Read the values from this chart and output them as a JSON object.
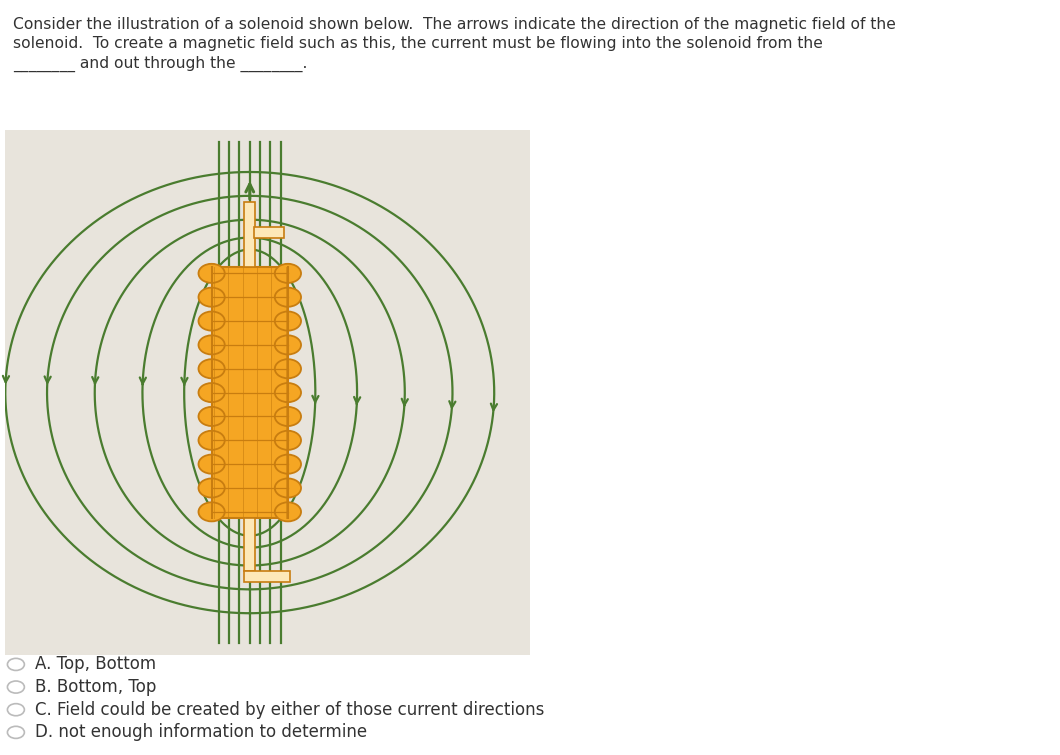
{
  "bg_color": "#ffffff",
  "header_line1": "Consider the illustration of a solenoid shown below.  The arrows indicate the direction of the magnetic field of the",
  "header_line2": "solenoid.  To create a magnetic field such as this, the current must be flowing into the solenoid from the",
  "header_line3": "________ and out through the ________.",
  "header_color": "#333333",
  "field_line_color": "#4a7c2f",
  "solenoid_fill_color": "#f5a623",
  "solenoid_edge_color": "#c87d10",
  "solenoid_light_color": "#fde8b8",
  "diagram_bg": "#e8e4dc",
  "options": [
    "A. Top, Bottom",
    "B. Bottom, Top",
    "C. Field could be created by either of those current directions",
    "D. not enough information to determine"
  ],
  "options_color": "#333333",
  "num_coils": 11
}
